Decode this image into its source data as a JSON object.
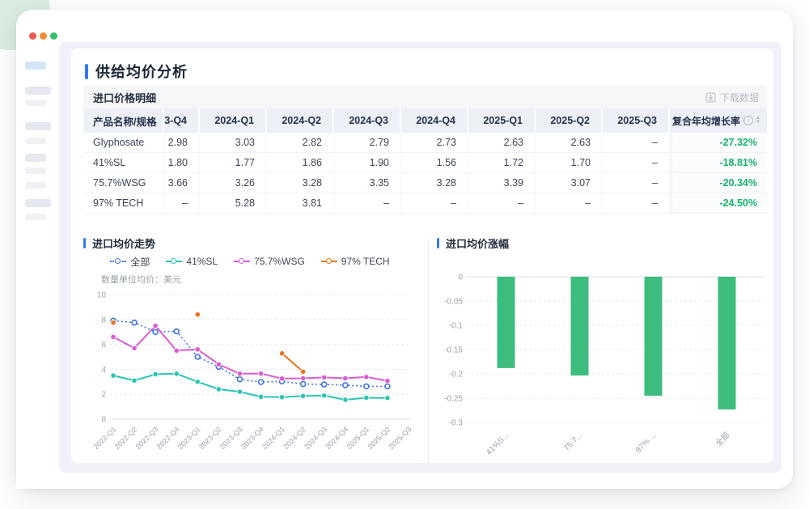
{
  "page": {
    "title": "供给均价分析"
  },
  "window_controls": {
    "close": "close",
    "minimize": "minimize",
    "maximize": "maximize"
  },
  "sidebar": {
    "skeleton": [
      {
        "tone": "blue",
        "wide": false
      },
      {
        "tone": "mid",
        "wide": true
      },
      {
        "tone": "light",
        "wide": false
      },
      {
        "tone": "mid",
        "wide": true
      },
      {
        "tone": "light",
        "wide": false
      },
      {
        "tone": "mid",
        "wide": false
      },
      {
        "tone": "light",
        "wide": false
      },
      {
        "tone": "light",
        "wide": false
      },
      {
        "tone": "mid",
        "wide": true
      },
      {
        "tone": "light",
        "wide": false
      }
    ]
  },
  "table_section": {
    "title": "进口价格明细",
    "download_label": "下载数据",
    "table": {
      "columns": [
        "产品名称/规格",
        "3-Q4",
        "2024-Q1",
        "2024-Q2",
        "2024-Q3",
        "2024-Q4",
        "2025-Q1",
        "2025-Q2",
        "2025-Q3",
        "复合年均增长率"
      ],
      "rows": [
        {
          "name": "Glyphosate",
          "values": [
            "2.98",
            "3.03",
            "2.82",
            "2.79",
            "2.73",
            "2.63",
            "2.63",
            "–"
          ],
          "cagr": "-27.32%"
        },
        {
          "name": "41%SL",
          "values": [
            "1.80",
            "1.77",
            "1.86",
            "1.90",
            "1.56",
            "1.72",
            "1.70",
            "–"
          ],
          "cagr": "-18.81%"
        },
        {
          "name": "75.7%WSG",
          "values": [
            "3.66",
            "3.26",
            "3.28",
            "3.35",
            "3.28",
            "3.39",
            "3.07",
            "–"
          ],
          "cagr": "-20.34%"
        },
        {
          "name": "97% TECH",
          "values": [
            "–",
            "5.28",
            "3.81",
            "–",
            "–",
            "–",
            "–",
            "–"
          ],
          "cagr": "-24.50%"
        }
      ]
    }
  },
  "colors": {
    "accent_blue": "#3478f2",
    "green_positive": "#16b26a",
    "bar_green": "#3dbd7d"
  },
  "chart_data": [
    {
      "type": "line",
      "title": "进口均价走势",
      "subtitle": "数量单位均价：美元",
      "x": [
        "2022-Q1",
        "2022-Q2",
        "2022-Q3",
        "2022-Q4",
        "2023-Q1",
        "2023-Q2",
        "2023-Q3",
        "2023-Q4",
        "2024-Q1",
        "2024-Q2",
        "2024-Q3",
        "2024-Q4",
        "2025-Q1",
        "2025-Q2",
        "2025-Q3"
      ],
      "series": [
        {
          "name": "全部",
          "color": "#4173e2",
          "style": "dotted",
          "values": [
            7.9,
            7.75,
            7.0,
            7.05,
            5.0,
            4.2,
            3.2,
            2.98,
            3.03,
            2.82,
            2.79,
            2.73,
            2.63,
            2.63,
            null
          ]
        },
        {
          "name": "41%SL",
          "color": "#2cc5b2",
          "style": "solid",
          "values": [
            3.5,
            3.1,
            3.6,
            3.65,
            3.0,
            2.4,
            2.2,
            1.8,
            1.77,
            1.86,
            1.9,
            1.56,
            1.72,
            1.7,
            null
          ]
        },
        {
          "name": "75.7%WSG",
          "color": "#db5cd0",
          "style": "solid",
          "values": [
            6.6,
            5.7,
            7.5,
            5.5,
            5.6,
            4.4,
            3.65,
            3.66,
            3.26,
            3.28,
            3.35,
            3.28,
            3.39,
            3.07,
            null
          ]
        },
        {
          "name": "97% TECH",
          "color": "#ec7423",
          "style": "solid",
          "values": [
            7.75,
            null,
            null,
            null,
            8.4,
            null,
            null,
            null,
            5.28,
            3.81,
            null,
            null,
            null,
            null,
            null
          ]
        }
      ],
      "ylim": [
        0,
        10
      ],
      "yticks": [
        0,
        2,
        4,
        6,
        8,
        10
      ],
      "grid": true,
      "legend_position": "top"
    },
    {
      "type": "bar",
      "title": "进口均价涨幅",
      "categories": [
        "41%S...",
        "75.7...",
        "97% ...",
        "全部"
      ],
      "values": [
        -0.1881,
        -0.2034,
        -0.245,
        -0.2732
      ],
      "bar_color": "#3dbd7d",
      "ylim": [
        -0.3,
        0
      ],
      "yticks": [
        "0",
        "-0.05",
        "-0.1",
        "-0.15",
        "-0.2",
        "-0.25",
        "-0.3"
      ],
      "grid": true
    }
  ]
}
